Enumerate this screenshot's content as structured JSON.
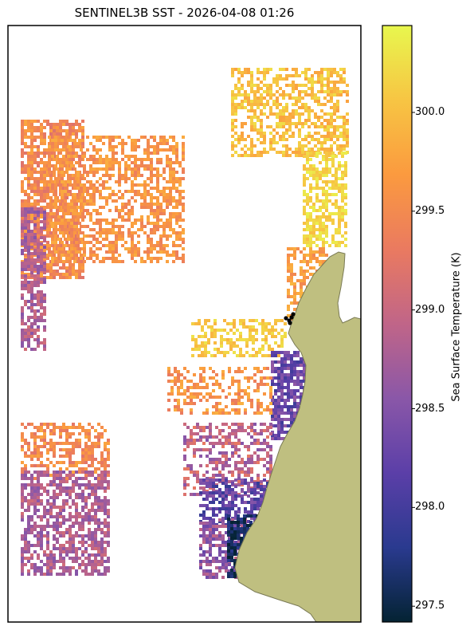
{
  "title": "SENTINEL3B SST - 2026-04-08 01:26",
  "colorbar": {
    "label": "Sea Surface Temperature (K)",
    "min": 297.42,
    "max": 300.44,
    "ticks": [
      {
        "value": 300.0,
        "label": "300.0"
      },
      {
        "value": 299.5,
        "label": "299.5"
      },
      {
        "value": 299.0,
        "label": "299.0"
      },
      {
        "value": 298.5,
        "label": "298.5"
      },
      {
        "value": 298.0,
        "label": "298.0"
      },
      {
        "value": 297.5,
        "label": "297.5"
      }
    ],
    "colormap": "thermal",
    "stops": [
      "#042333",
      "#2a3a8f",
      "#5b3fa8",
      "#8a57a8",
      "#c06588",
      "#ea7a60",
      "#fb9a3f",
      "#f7c543",
      "#e8f74e"
    ]
  },
  "land_color": "#bfbf80",
  "marker_color": "#000000",
  "markers_count": 5
}
